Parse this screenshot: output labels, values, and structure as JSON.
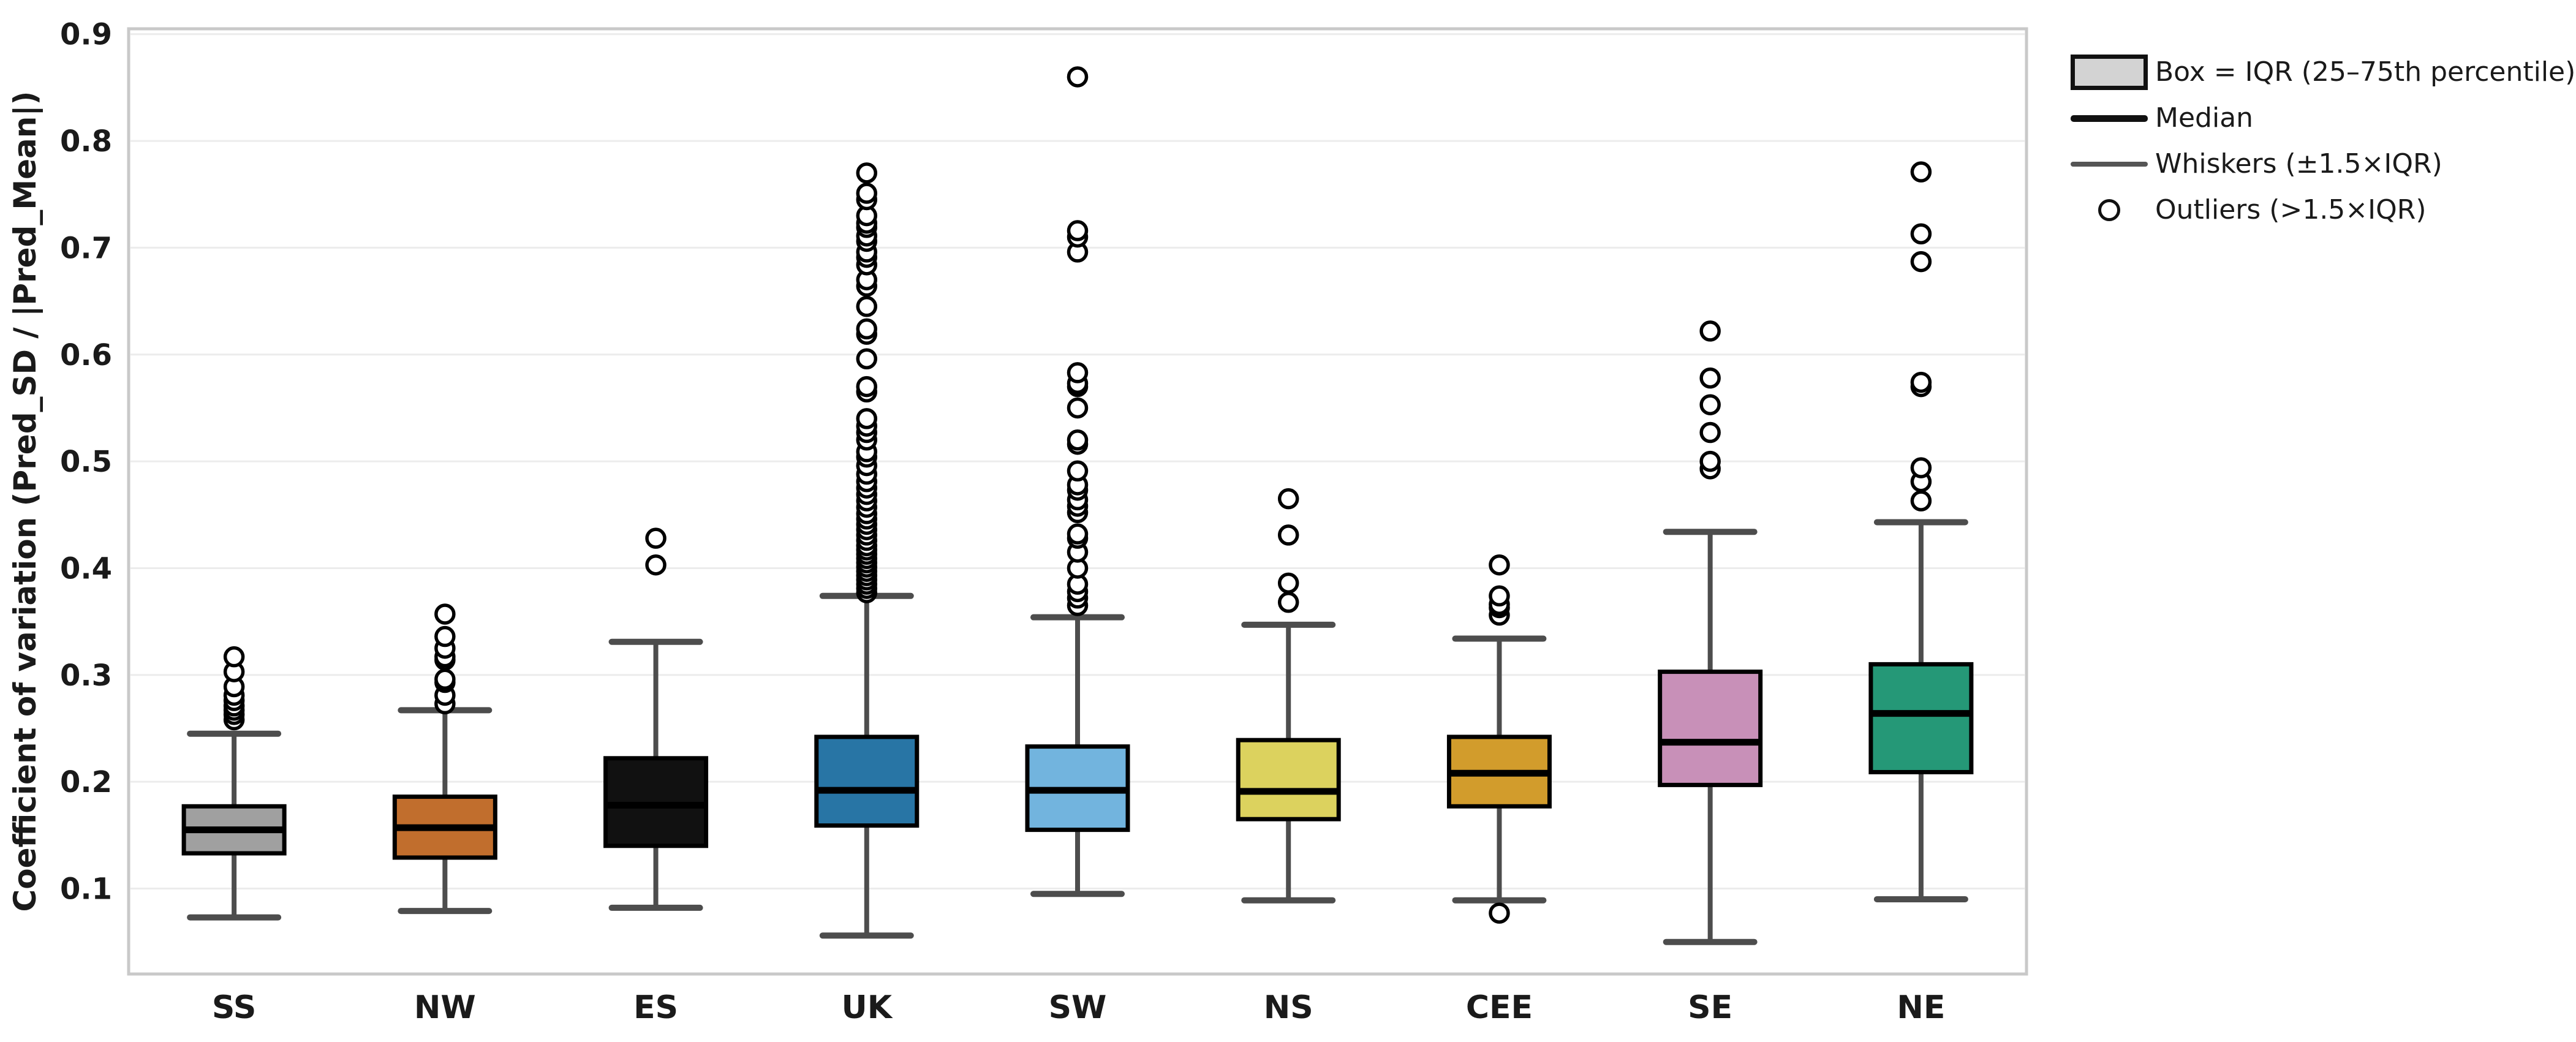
{
  "figure": {
    "background": "#ffffff",
    "plot_border_color": "#c9c9c9",
    "gridline_color": "#ececec",
    "whisker_color": "#4d4d4d",
    "median_color": "#000000",
    "box_edge_color": "#000000",
    "text_color": "#1a1a1a"
  },
  "legend": {
    "position": "outside-right",
    "items": [
      {
        "icon": "box-swatch",
        "label": "Box = IQR (25–75th percentile)"
      },
      {
        "icon": "median-line-swatch",
        "label": "Median"
      },
      {
        "icon": "whisker-line-swatch",
        "label": "Whiskers (±1.5×IQR)"
      },
      {
        "icon": "outlier-circle-swatch",
        "label": "Outliers (>1.5×IQR)"
      }
    ]
  },
  "chart_data": {
    "type": "boxplot",
    "title": "",
    "xlabel": "",
    "ylabel": "Coefficient of variation (Pred_SD / |Pred_Mean|)",
    "categories": [
      "SS",
      "NW",
      "ES",
      "UK",
      "SW",
      "NS",
      "CEE",
      "SE",
      "NE"
    ],
    "yticks": [
      0.1,
      0.2,
      0.3,
      0.4,
      0.5,
      0.6,
      0.7,
      0.8,
      0.9
    ],
    "ylim": [
      0.02,
      0.905
    ],
    "grid": "horizontal",
    "legend_position": "outside-right",
    "series": [
      {
        "name": "SS",
        "color": "#a0a0a0",
        "whisker_low": 0.073,
        "q1": 0.133,
        "median": 0.155,
        "q3": 0.177,
        "whisker_high": 0.245,
        "outliers": [
          0.258,
          0.263,
          0.267,
          0.271,
          0.276,
          0.281,
          0.289,
          0.303,
          0.317
        ]
      },
      {
        "name": "NW",
        "color": "#c16e2d",
        "whisker_low": 0.079,
        "q1": 0.129,
        "median": 0.157,
        "q3": 0.186,
        "whisker_high": 0.267,
        "outliers": [
          0.273,
          0.281,
          0.293,
          0.296,
          0.314,
          0.317,
          0.325,
          0.336,
          0.357
        ]
      },
      {
        "name": "ES",
        "color": "#111111",
        "whisker_low": 0.082,
        "q1": 0.14,
        "median": 0.178,
        "q3": 0.222,
        "whisker_high": 0.331,
        "outliers": [
          0.403,
          0.428
        ]
      },
      {
        "name": "UK",
        "color": "#2875a5",
        "whisker_low": 0.056,
        "q1": 0.159,
        "median": 0.192,
        "q3": 0.242,
        "whisker_high": 0.374,
        "outliers": [
          0.377,
          0.381,
          0.385,
          0.389,
          0.393,
          0.397,
          0.401,
          0.405,
          0.409,
          0.413,
          0.417,
          0.421,
          0.426,
          0.431,
          0.436,
          0.441,
          0.446,
          0.451,
          0.457,
          0.463,
          0.469,
          0.475,
          0.481,
          0.488,
          0.496,
          0.504,
          0.509,
          0.52,
          0.527,
          0.533,
          0.54,
          0.565,
          0.57,
          0.596,
          0.619,
          0.624,
          0.645,
          0.664,
          0.67,
          0.684,
          0.691,
          0.696,
          0.706,
          0.711,
          0.719,
          0.723,
          0.73,
          0.745,
          0.751,
          0.77
        ]
      },
      {
        "name": "SW",
        "color": "#72b4de",
        "whisker_low": 0.095,
        "q1": 0.155,
        "median": 0.192,
        "q3": 0.233,
        "whisker_high": 0.354,
        "outliers": [
          0.365,
          0.372,
          0.378,
          0.385,
          0.4,
          0.415,
          0.428,
          0.432,
          0.452,
          0.458,
          0.464,
          0.473,
          0.478,
          0.491,
          0.516,
          0.52,
          0.55,
          0.57,
          0.573,
          0.583,
          0.696,
          0.71,
          0.716,
          0.86
        ]
      },
      {
        "name": "NS",
        "color": "#dcd25e",
        "whisker_low": 0.089,
        "q1": 0.165,
        "median": 0.191,
        "q3": 0.239,
        "whisker_high": 0.347,
        "outliers": [
          0.368,
          0.386,
          0.431,
          0.465
        ]
      },
      {
        "name": "CEE",
        "color": "#d29c2c",
        "whisker_low": 0.089,
        "q1": 0.177,
        "median": 0.208,
        "q3": 0.242,
        "whisker_high": 0.334,
        "outliers": [
          0.077,
          0.356,
          0.363,
          0.366,
          0.374,
          0.403
        ]
      },
      {
        "name": "SE",
        "color": "#c890b8",
        "whisker_low": 0.05,
        "q1": 0.197,
        "median": 0.237,
        "q3": 0.303,
        "whisker_high": 0.434,
        "outliers": [
          0.493,
          0.5,
          0.527,
          0.553,
          0.578,
          0.622
        ]
      },
      {
        "name": "NE",
        "color": "#259877",
        "whisker_low": 0.09,
        "q1": 0.209,
        "median": 0.264,
        "q3": 0.31,
        "whisker_high": 0.443,
        "outliers": [
          0.463,
          0.481,
          0.494,
          0.57,
          0.574,
          0.687,
          0.713,
          0.771
        ]
      }
    ]
  }
}
